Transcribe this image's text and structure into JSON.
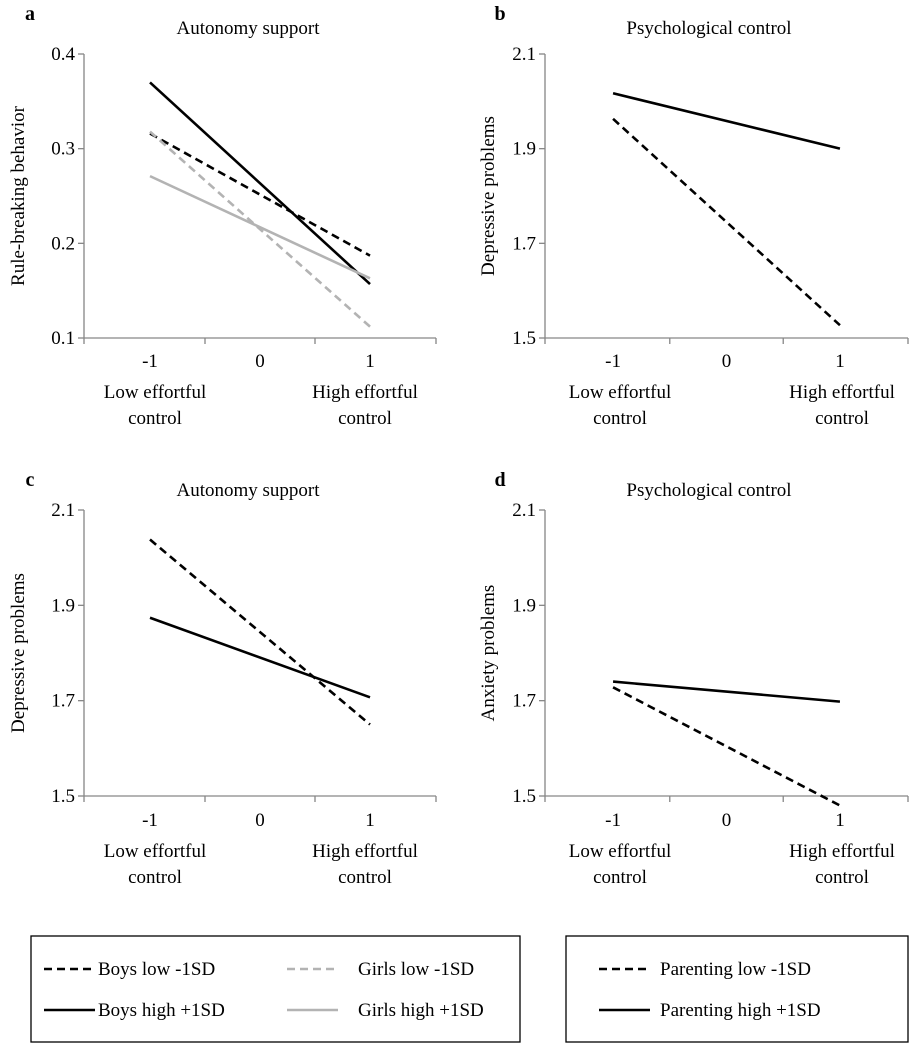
{
  "legends": [
    {
      "items": [
        {
          "label": "Boys low -1SD",
          "color": "#000000",
          "dash": true
        },
        {
          "label": "Girls low -1SD",
          "color": "#b3b3b3",
          "dash": true
        },
        {
          "label": "Boys high +1SD",
          "color": "#000000",
          "dash": false
        },
        {
          "label": "Girls high +1SD",
          "color": "#b3b3b3",
          "dash": false
        }
      ]
    },
    {
      "items": [
        {
          "label": "Parenting low -1SD",
          "color": "#000000",
          "dash": true
        },
        {
          "label": "Parenting high +1SD",
          "color": "#000000",
          "dash": false
        }
      ]
    }
  ],
  "chart_data": [
    {
      "type": "line",
      "panel": "a",
      "title": "Autonomy support",
      "ylabel": "Rule-breaking behavior",
      "xlabel_low": [
        "Low effortful",
        "control"
      ],
      "xlabel_high": [
        "High effortful",
        "control"
      ],
      "x": [
        -1,
        1
      ],
      "x_ticks": [
        "-1",
        "0",
        "1"
      ],
      "xlim": [
        -1.6,
        1.6
      ],
      "ylim": [
        0.1,
        0.4
      ],
      "y_ticks": [
        "0.1",
        "0.2",
        "0.3",
        "0.4"
      ],
      "series": [
        {
          "name": "Boys low -1SD",
          "values": [
            0.316,
            0.187
          ],
          "color": "#000000",
          "dash": true
        },
        {
          "name": "Girls low -1SD",
          "values": [
            0.318,
            0.112
          ],
          "color": "#b3b3b3",
          "dash": true
        },
        {
          "name": "Boys high +1SD",
          "values": [
            0.37,
            0.157
          ],
          "color": "#000000",
          "dash": false
        },
        {
          "name": "Girls high +1SD",
          "values": [
            0.271,
            0.163
          ],
          "color": "#b3b3b3",
          "dash": false
        }
      ]
    },
    {
      "type": "line",
      "panel": "b",
      "title": "Psychological control",
      "ylabel": "Depressive problems",
      "xlabel_low": [
        "Low effortful",
        "control"
      ],
      "xlabel_high": [
        "High effortful",
        "control"
      ],
      "x": [
        -1,
        1
      ],
      "x_ticks": [
        "-1",
        "0",
        "1"
      ],
      "xlim": [
        -1.6,
        1.6
      ],
      "ylim": [
        1.5,
        2.1
      ],
      "y_ticks": [
        "1.5",
        "1.7",
        "1.9",
        "2.1"
      ],
      "series": [
        {
          "name": "Parenting low -1SD",
          "values": [
            1.963,
            1.527
          ],
          "color": "#000000",
          "dash": true
        },
        {
          "name": "Parenting high +1SD",
          "values": [
            2.017,
            1.9
          ],
          "color": "#000000",
          "dash": false
        }
      ]
    },
    {
      "type": "line",
      "panel": "c",
      "title": "Autonomy support",
      "ylabel": "Depressive problems",
      "xlabel_low": [
        "Low effortful",
        "control"
      ],
      "xlabel_high": [
        "High effortful",
        "control"
      ],
      "x": [
        -1,
        1
      ],
      "x_ticks": [
        "-1",
        "0",
        "1"
      ],
      "xlim": [
        -1.6,
        1.6
      ],
      "ylim": [
        1.5,
        2.1
      ],
      "y_ticks": [
        "1.5",
        "1.7",
        "1.9",
        "2.1"
      ],
      "series": [
        {
          "name": "Parenting low -1SD",
          "values": [
            2.038,
            1.65
          ],
          "color": "#000000",
          "dash": true
        },
        {
          "name": "Parenting high +1SD",
          "values": [
            1.874,
            1.707
          ],
          "color": "#000000",
          "dash": false
        }
      ]
    },
    {
      "type": "line",
      "panel": "d",
      "title": "Psychological control",
      "ylabel": "Anxiety problems",
      "xlabel_low": [
        "Low effortful",
        "control"
      ],
      "xlabel_high": [
        "High effortful",
        "control"
      ],
      "x": [
        -1,
        1
      ],
      "x_ticks": [
        "-1",
        "0",
        "1"
      ],
      "xlim": [
        -1.6,
        1.6
      ],
      "ylim": [
        1.5,
        2.1
      ],
      "y_ticks": [
        "1.5",
        "1.7",
        "1.9",
        "2.1"
      ],
      "series": [
        {
          "name": "Parenting low -1SD",
          "values": [
            1.728,
            1.48
          ],
          "color": "#000000",
          "dash": true
        },
        {
          "name": "Parenting high +1SD",
          "values": [
            1.74,
            1.698
          ],
          "color": "#000000",
          "dash": false
        }
      ]
    }
  ]
}
